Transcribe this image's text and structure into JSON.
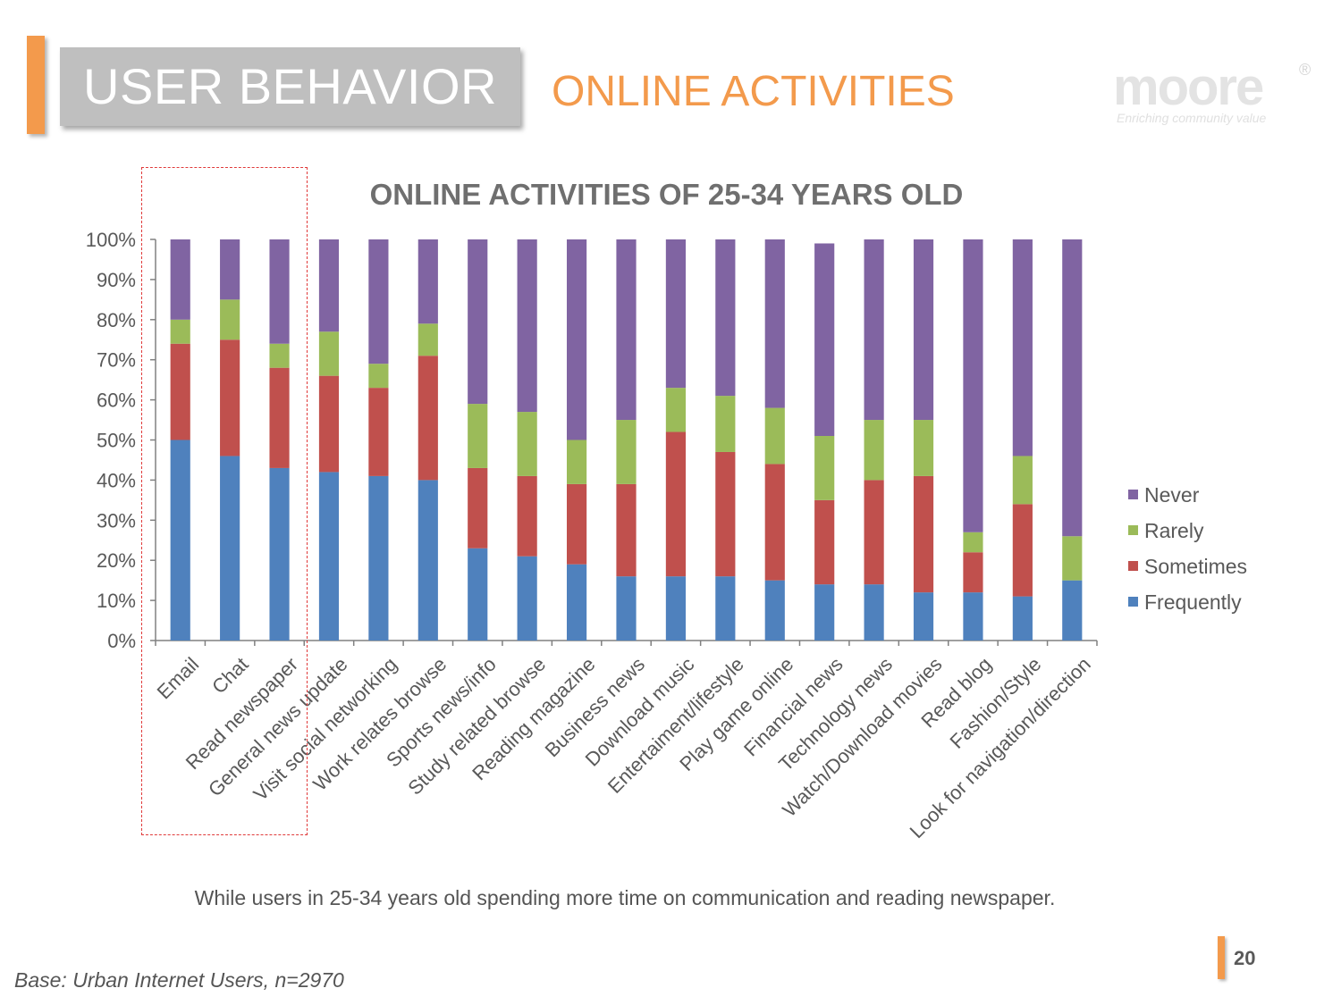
{
  "header": {
    "section_title": "USER BEHAVIOR",
    "subtitle": "ONLINE ACTIVITIES",
    "logo_text": "moore",
    "logo_registered": "®",
    "logo_tagline": "Enriching community value"
  },
  "colors": {
    "accent": "#f39a4c",
    "frequently": "#4f81bd",
    "sometimes": "#c0504d",
    "rarely": "#9bbb59",
    "never": "#8064a2",
    "highlight_border": "#e03a3a"
  },
  "chart_data": {
    "type": "bar",
    "stacked": true,
    "percent_stacked": true,
    "title": "ONLINE ACTIVITIES OF 25-34 YEARS OLD",
    "xlabel": "",
    "ylabel": "",
    "ylim": [
      0,
      100
    ],
    "yticks": [
      "0%",
      "10%",
      "20%",
      "30%",
      "40%",
      "50%",
      "60%",
      "70%",
      "80%",
      "90%",
      "100%"
    ],
    "legend_position": "right",
    "categories": [
      "Email",
      "Chat",
      "Read newspaper",
      "General news update",
      "Visit social networking",
      "Work relates browse",
      "Sports news/info",
      "Study related browse",
      "Reading magazine",
      "Business news",
      "Download music",
      "Entertaiment/lifestyle",
      "Play game online",
      "Financial news",
      "Technology news",
      "Watch/Download movies",
      "Read blog",
      "Fashion/Style",
      "Look for navigation/direction"
    ],
    "series": [
      {
        "name": "Frequently",
        "color": "#4f81bd",
        "values": [
          50,
          46,
          43,
          42,
          41,
          40,
          23,
          21,
          19,
          16,
          16,
          16,
          15,
          14,
          14,
          12,
          12,
          11,
          15
        ]
      },
      {
        "name": "Sometimes",
        "color": "#c0504d",
        "values": [
          24,
          29,
          25,
          24,
          22,
          31,
          20,
          20,
          20,
          23,
          36,
          31,
          29,
          21,
          26,
          29,
          10,
          23,
          0
        ]
      },
      {
        "name": "Rarely",
        "color": "#9bbb59",
        "values": [
          6,
          10,
          6,
          11,
          6,
          8,
          16,
          16,
          11,
          16,
          11,
          14,
          14,
          16,
          15,
          14,
          5,
          12,
          11
        ]
      },
      {
        "name": "Never",
        "color": "#8064a2",
        "values": [
          20,
          15,
          26,
          23,
          31,
          21,
          41,
          43,
          50,
          45,
          37,
          39,
          42,
          48,
          45,
          45,
          73,
          54,
          74
        ]
      }
    ],
    "legend": [
      "Never",
      "Rarely",
      "Sometimes",
      "Frequently"
    ]
  },
  "note": "While users in 25-34 years old spending more time on communication and  reading newspaper.",
  "footer": {
    "base": "Base: Urban Internet Users, n=2970",
    "page_number": "20"
  }
}
